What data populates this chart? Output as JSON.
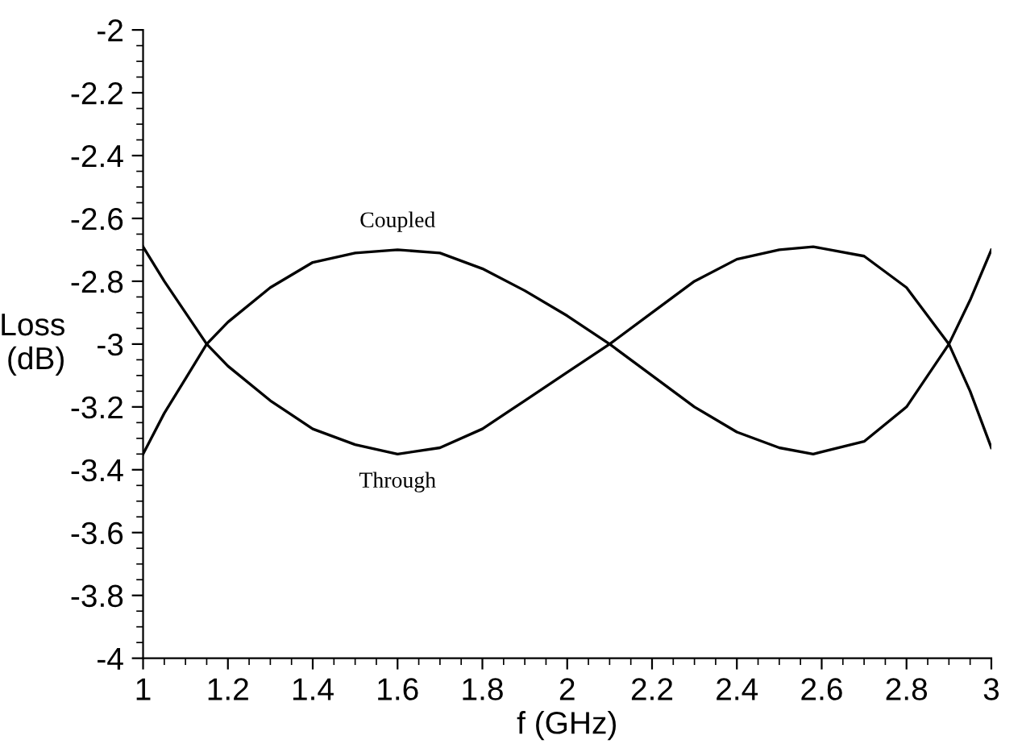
{
  "chart_data": {
    "type": "line",
    "xlabel": "f (GHz)",
    "ylabel": "Loss\n(dB)",
    "x": [
      1.0,
      1.05,
      1.1,
      1.15,
      1.2,
      1.3,
      1.4,
      1.5,
      1.6,
      1.7,
      1.8,
      1.9,
      2.0,
      2.1,
      2.2,
      2.3,
      2.4,
      2.5,
      2.58,
      2.7,
      2.8,
      2.9,
      2.95,
      3.0
    ],
    "series": [
      {
        "name": "Coupled",
        "color": "#000000",
        "values": [
          -3.35,
          -3.22,
          -3.11,
          -3.0,
          -2.93,
          -2.82,
          -2.74,
          -2.71,
          -2.7,
          -2.71,
          -2.76,
          -2.83,
          -2.91,
          -3.0,
          -3.1,
          -3.2,
          -3.28,
          -3.33,
          -3.35,
          -3.31,
          -3.2,
          -3.0,
          -2.86,
          -2.7
        ]
      },
      {
        "name": "Through",
        "color": "#000000",
        "values": [
          -2.69,
          -2.8,
          -2.9,
          -3.0,
          -3.07,
          -3.18,
          -3.27,
          -3.32,
          -3.35,
          -3.33,
          -3.27,
          -3.18,
          -3.09,
          -3.0,
          -2.9,
          -2.8,
          -2.73,
          -2.7,
          -2.69,
          -2.72,
          -2.82,
          -3.0,
          -3.15,
          -3.33
        ]
      }
    ],
    "xlim": [
      1,
      3
    ],
    "ylim": [
      -4,
      -2
    ],
    "xticks": [
      1,
      1.2,
      1.4,
      1.6,
      1.8,
      2,
      2.2,
      2.4,
      2.6,
      2.8,
      3
    ],
    "yticks": [
      -4,
      -3.8,
      -3.6,
      -3.4,
      -3.2,
      -3,
      -2.8,
      -2.6,
      -2.4,
      -2.2,
      -2
    ],
    "grid": false,
    "legend": false,
    "marker": "none",
    "line_style": "solid"
  }
}
